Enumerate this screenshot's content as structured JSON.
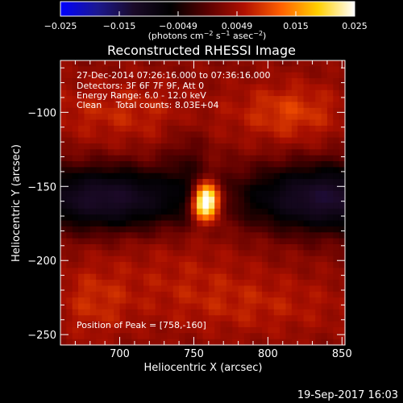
{
  "colorbar": {
    "ticks": [
      "−0.025",
      "−0.015",
      "−0.0049",
      "0.0049",
      "0.015",
      "0.025"
    ],
    "unit_label_parts": [
      "(photons cm",
      "−2",
      " s",
      "−1",
      " asec",
      "−2",
      ")"
    ],
    "stops": [
      "#0000ff",
      "#1c1890",
      "#1a0a28",
      "#000000",
      "#5a0000",
      "#b01000",
      "#ff6000",
      "#ffd000",
      "#ffffff"
    ]
  },
  "chart_data": {
    "type": "heatmap",
    "title": "Reconstructed RHESSI Image",
    "xlabel": "Heliocentric X (arcsec)",
    "ylabel": "Heliocentric Y (arcsec)",
    "xlim": [
      660,
      852
    ],
    "ylim": [
      -257,
      -65
    ],
    "x_ticks": [
      700,
      750,
      800,
      850
    ],
    "y_ticks": [
      -100,
      -150,
      -200,
      -250
    ],
    "x_tick_labels": [
      "700",
      "750",
      "800",
      "850"
    ],
    "y_tick_labels": [
      "−100",
      "−150",
      "−200",
      "−250"
    ],
    "colorbar_range": [
      -0.025,
      0.025
    ],
    "peak": {
      "x": 758,
      "y": -160
    },
    "annotations": [
      "27-Dec-2014 07:26:16.000 to 07:36:16.000",
      "Detectors: 3F 6F 7F 9F, Att 0",
      "Energy Range: 6.0 - 12.0 keV",
      "Clean     Total counts: 8.03E+04"
    ],
    "peak_label": "Position of Peak = [758,-160]"
  },
  "footer": {
    "timestamp": "19-Sep-2017 16:03"
  }
}
